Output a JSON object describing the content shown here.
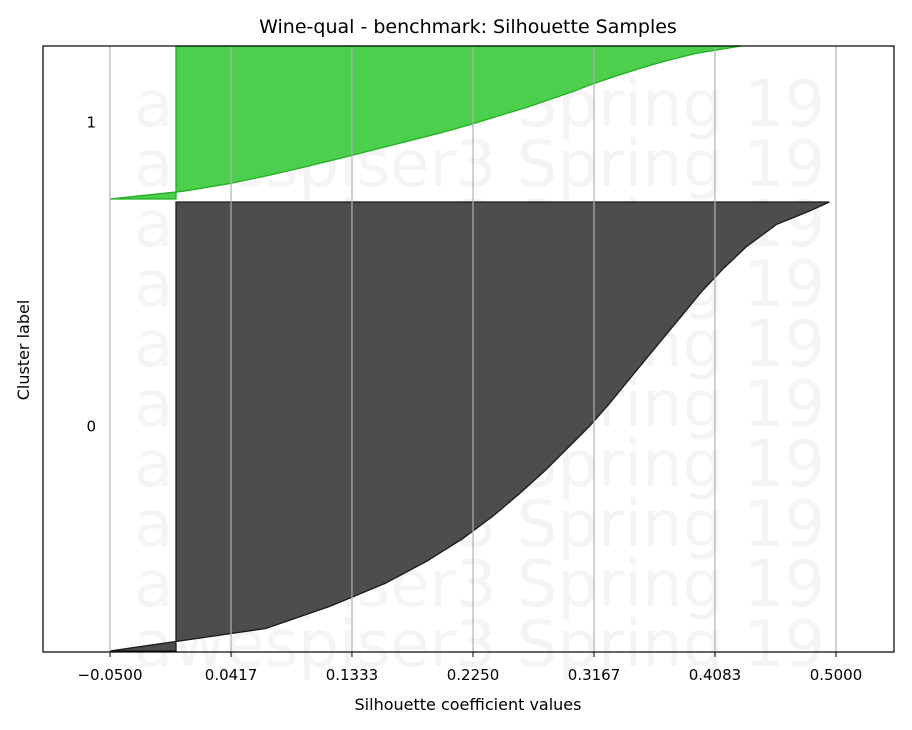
{
  "chart_data": {
    "type": "area",
    "title": "Wine-qual - benchmark: Silhouette Samples",
    "xlabel": "Silhouette coefficient values",
    "ylabel": "Cluster label",
    "xlim": [
      -0.05,
      0.5
    ],
    "x_ticks": [
      "-0.0500",
      "0.0417",
      "0.1333",
      "0.2250",
      "0.3167",
      "0.4083",
      "0.5000"
    ],
    "x_tick_values": [
      -0.05,
      0.0417,
      0.1333,
      0.225,
      0.3167,
      0.4083,
      0.5
    ],
    "grid": "vertical",
    "watermark": "awespiser3 Spring 19",
    "watermark_repeats": 10,
    "clusters": [
      {
        "label": "0",
        "color": "#4d4d4d",
        "edge_color": "#1a1a1a",
        "profile": [
          [
            0.0,
            0.495
          ],
          [
            0.02,
            0.48
          ],
          [
            0.05,
            0.455
          ],
          [
            0.1,
            0.432
          ],
          [
            0.15,
            0.414
          ],
          [
            0.2,
            0.398
          ],
          [
            0.25,
            0.384
          ],
          [
            0.3,
            0.37
          ],
          [
            0.35,
            0.356
          ],
          [
            0.4,
            0.342
          ],
          [
            0.45,
            0.328
          ],
          [
            0.5,
            0.313
          ],
          [
            0.55,
            0.296
          ],
          [
            0.6,
            0.279
          ],
          [
            0.65,
            0.26
          ],
          [
            0.7,
            0.24
          ],
          [
            0.75,
            0.217
          ],
          [
            0.8,
            0.19
          ],
          [
            0.85,
            0.158
          ],
          [
            0.9,
            0.117
          ],
          [
            0.95,
            0.068
          ],
          [
            1.0,
            -0.05
          ]
        ]
      },
      {
        "label": "1",
        "color": "#4ccf4c",
        "edge_color": "#22b022",
        "profile": [
          [
            0.0,
            0.428
          ],
          [
            0.05,
            0.393
          ],
          [
            0.1,
            0.37
          ],
          [
            0.15,
            0.35
          ],
          [
            0.2,
            0.332
          ],
          [
            0.25,
            0.315
          ],
          [
            0.3,
            0.3
          ],
          [
            0.35,
            0.283
          ],
          [
            0.4,
            0.266
          ],
          [
            0.45,
            0.247
          ],
          [
            0.5,
            0.228
          ],
          [
            0.55,
            0.208
          ],
          [
            0.6,
            0.186
          ],
          [
            0.65,
            0.163
          ],
          [
            0.7,
            0.14
          ],
          [
            0.75,
            0.117
          ],
          [
            0.8,
            0.093
          ],
          [
            0.85,
            0.068
          ],
          [
            0.9,
            0.04
          ],
          [
            0.95,
            0.005
          ],
          [
            1.0,
            -0.05
          ]
        ]
      }
    ]
  }
}
